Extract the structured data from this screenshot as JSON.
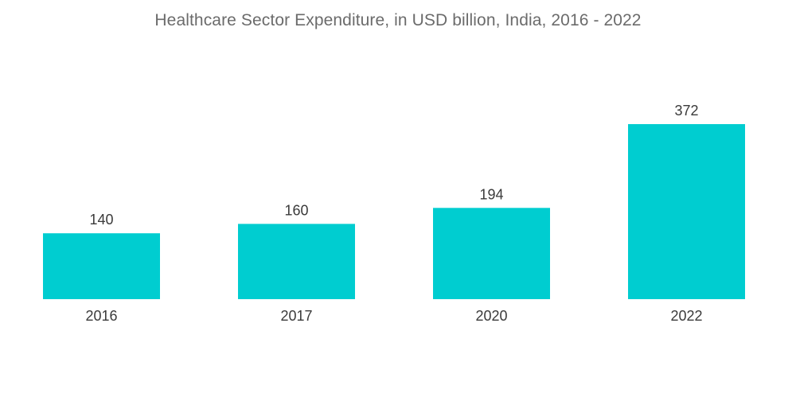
{
  "chart_data": {
    "type": "bar",
    "title": "Healthcare Sector Expenditure, in USD billion, India, 2016 - 2022",
    "categories": [
      "2016",
      "2017",
      "2020",
      "2022"
    ],
    "values": [
      140,
      160,
      194,
      372
    ],
    "data_labels": [
      "140",
      "160",
      "194",
      "372"
    ],
    "xlabel": "",
    "ylabel": "",
    "ylim": [
      0,
      372
    ],
    "grid": false,
    "legend": "none",
    "bar_color": "#00cdd0"
  }
}
